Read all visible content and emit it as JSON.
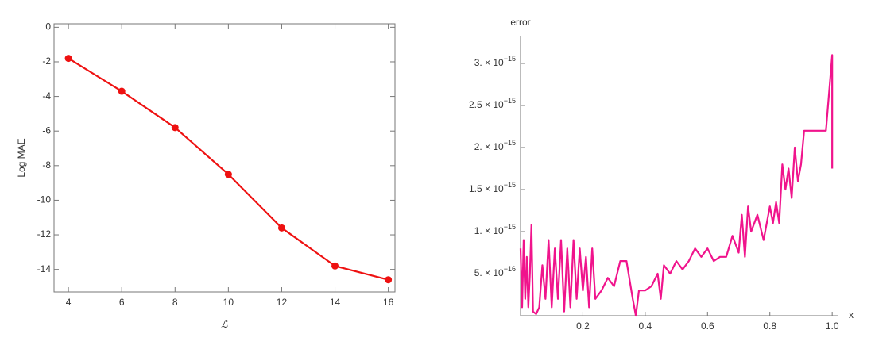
{
  "chart_data": [
    {
      "type": "line",
      "xlabel": "ℒ",
      "ylabel": "Log MAE",
      "x": [
        4,
        6,
        8,
        10,
        12,
        14,
        16
      ],
      "series": [
        {
          "color": "#ee1111",
          "values": [
            -1.8,
            -3.7,
            -5.8,
            -8.5,
            -11.6,
            -13.8,
            -14.6
          ]
        }
      ],
      "markers": true,
      "xlim": [
        3.46,
        16.25
      ],
      "ylim": [
        -15.3,
        0.2
      ],
      "xticks": [
        4,
        6,
        8,
        10,
        12,
        14,
        16
      ],
      "yticks": [
        0,
        -2,
        -4,
        -6,
        -8,
        -10,
        -12,
        -14
      ]
    },
    {
      "type": "line",
      "xlabel": "x",
      "ylabel": "error",
      "x": [
        0,
        0.005,
        0.01,
        0.015,
        0.02,
        0.025,
        0.03,
        0.035,
        0.04,
        0.05,
        0.06,
        0.07,
        0.08,
        0.09,
        0.1,
        0.11,
        0.12,
        0.13,
        0.14,
        0.15,
        0.16,
        0.17,
        0.18,
        0.19,
        0.2,
        0.21,
        0.22,
        0.23,
        0.24,
        0.26,
        0.28,
        0.3,
        0.32,
        0.34,
        0.36,
        0.37,
        0.38,
        0.4,
        0.42,
        0.44,
        0.45,
        0.46,
        0.48,
        0.5,
        0.52,
        0.54,
        0.56,
        0.58,
        0.6,
        0.62,
        0.64,
        0.66,
        0.68,
        0.7,
        0.71,
        0.72,
        0.73,
        0.74,
        0.76,
        0.78,
        0.8,
        0.81,
        0.82,
        0.83,
        0.84,
        0.85,
        0.86,
        0.87,
        0.88,
        0.89,
        0.9,
        0.91,
        0.92,
        0.94,
        0.96,
        0.98,
        0.99,
        1.0,
        1.0
      ],
      "series": [
        {
          "color": "#f0148c",
          "values": [
            8e-16,
            1e-16,
            9e-16,
            2e-16,
            7e-16,
            1e-16,
            5e-16,
            1.08e-15,
            5e-17,
            2e-17,
            1e-16,
            6e-16,
            2e-16,
            9e-16,
            1e-16,
            8e-16,
            2e-16,
            9e-16,
            5e-17,
            8e-16,
            1e-16,
            9e-16,
            2e-16,
            8e-16,
            3e-16,
            7e-16,
            1e-16,
            8e-16,
            2e-16,
            3e-16,
            4.5e-16,
            3.5e-16,
            6.5e-16,
            6.5e-16,
            2e-16,
            0,
            3e-16,
            3e-16,
            3.5e-16,
            5e-16,
            2e-16,
            6e-16,
            5e-16,
            6.5e-16,
            5.5e-16,
            6.5e-16,
            8e-16,
            7e-16,
            8e-16,
            6.5e-16,
            7e-16,
            7e-16,
            9.5e-16,
            7.5e-16,
            1.2e-15,
            7e-16,
            1.3e-15,
            1e-15,
            1.2e-15,
            9e-16,
            1.3e-15,
            1.1e-15,
            1.35e-15,
            1.1e-15,
            1.8e-15,
            1.5e-15,
            1.75e-15,
            1.4e-15,
            2e-15,
            1.6e-15,
            1.8e-15,
            2.2e-15,
            2.2e-15,
            2.2e-15,
            2.2e-15,
            2.2e-15,
            2.65e-15,
            3.1e-15,
            1.75e-15
          ]
        }
      ],
      "markers": false,
      "xlim": [
        0,
        1.02
      ],
      "ylim": [
        0,
        3.33e-15
      ],
      "xticks": [
        {
          "value": 0.2,
          "label": "0.2"
        },
        {
          "value": 0.4,
          "label": "0.4"
        },
        {
          "value": 0.6,
          "label": "0.6"
        },
        {
          "value": 0.8,
          "label": "0.8"
        },
        {
          "value": 1,
          "label": "1.0"
        }
      ],
      "yticks": [
        {
          "value": 5e-16,
          "label": "5. × 10−16"
        },
        {
          "value": 1e-15,
          "label": "1. × 10−15"
        },
        {
          "value": 1.5e-15,
          "label": "1.5 × 10−15"
        },
        {
          "value": 2e-15,
          "label": "2. × 10−15"
        },
        {
          "value": 2.5e-15,
          "label": "2.5 × 10−15"
        },
        {
          "value": 3e-15,
          "label": "3. × 10−15"
        }
      ]
    }
  ]
}
